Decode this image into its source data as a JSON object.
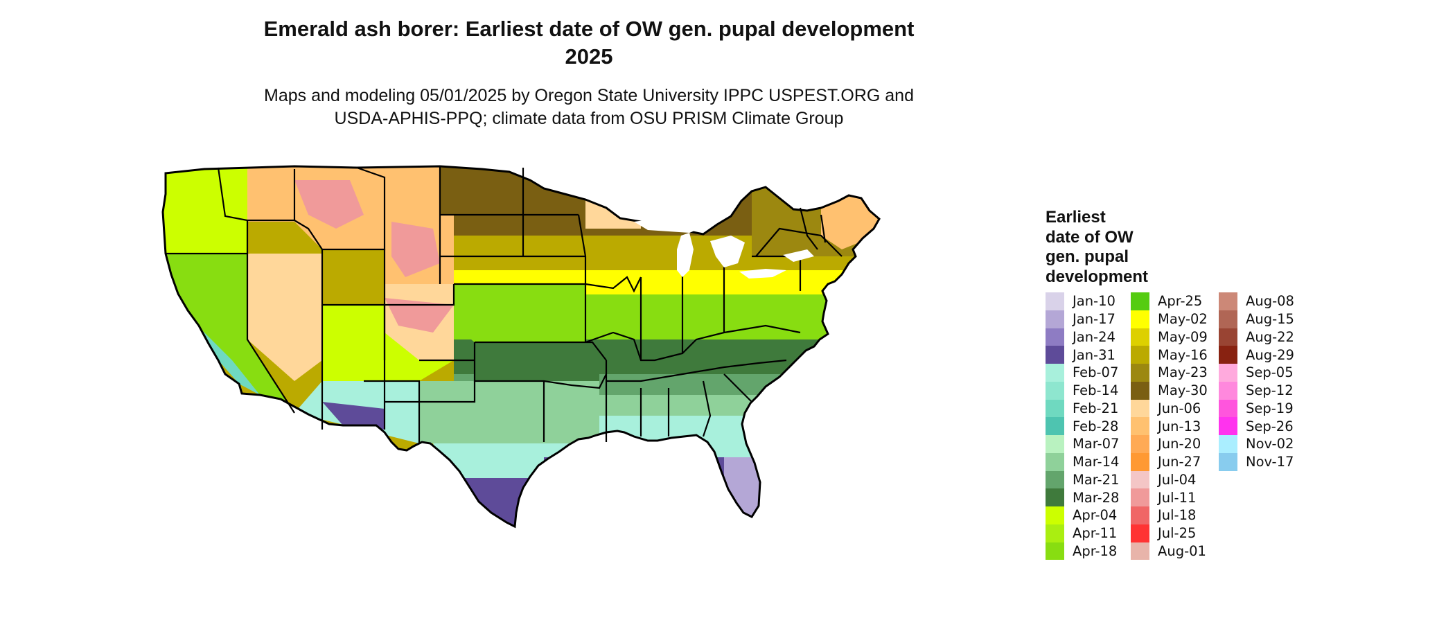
{
  "title_line1": "Emerald ash borer: Earliest date of OW gen. pupal development",
  "title_line2": "2025",
  "subtitle_line1": "Maps and modeling 05/01/2025 by Oregon State University IPPC USPEST.ORG and",
  "subtitle_line2": "USDA-APHIS-PPQ; climate data from OSU PRISM Climate Group",
  "legend": {
    "title_lines": [
      "Earliest",
      "date of OW",
      "gen. pupal",
      "development"
    ],
    "columns": [
      [
        {
          "label": "Jan-10",
          "color": "#d9d2e9"
        },
        {
          "label": "Jan-17",
          "color": "#b4a7d6"
        },
        {
          "label": "Jan-24",
          "color": "#8e7cc3"
        },
        {
          "label": "Jan-31",
          "color": "#5e4b99"
        },
        {
          "label": "Feb-07",
          "color": "#a8f0dc"
        },
        {
          "label": "Feb-14",
          "color": "#8ee6cf"
        },
        {
          "label": "Feb-21",
          "color": "#6fd9c0"
        },
        {
          "label": "Feb-28",
          "color": "#4ec4b0"
        },
        {
          "label": "Mar-07",
          "color": "#b9f2c0"
        },
        {
          "label": "Mar-14",
          "color": "#8fd19a"
        },
        {
          "label": "Mar-21",
          "color": "#63a56c"
        },
        {
          "label": "Mar-28",
          "color": "#3f7a3c"
        },
        {
          "label": "Apr-04",
          "color": "#ccff00"
        },
        {
          "label": "Apr-11",
          "color": "#aaee11"
        },
        {
          "label": "Apr-18",
          "color": "#88dd11"
        }
      ],
      [
        {
          "label": "Apr-25",
          "color": "#55cc11"
        },
        {
          "label": "May-02",
          "color": "#ffff00"
        },
        {
          "label": "May-09",
          "color": "#ddd000"
        },
        {
          "label": "May-16",
          "color": "#bbaa00"
        },
        {
          "label": "May-23",
          "color": "#9c8810"
        },
        {
          "label": "May-30",
          "color": "#7a5f12"
        },
        {
          "label": "Jun-06",
          "color": "#ffd79a"
        },
        {
          "label": "Jun-13",
          "color": "#ffc170"
        },
        {
          "label": "Jun-20",
          "color": "#ffaa55"
        },
        {
          "label": "Jun-27",
          "color": "#ff9933"
        },
        {
          "label": "Jul-04",
          "color": "#f4c6c6"
        },
        {
          "label": "Jul-11",
          "color": "#f09a9a"
        },
        {
          "label": "Jul-18",
          "color": "#f06666"
        },
        {
          "label": "Jul-25",
          "color": "#ff3333"
        },
        {
          "label": "Aug-01",
          "color": "#e8b4aa"
        }
      ],
      [
        {
          "label": "Aug-08",
          "color": "#cc8877"
        },
        {
          "label": "Aug-15",
          "color": "#b06655"
        },
        {
          "label": "Aug-22",
          "color": "#994433"
        },
        {
          "label": "Aug-29",
          "color": "#882211"
        },
        {
          "label": "Sep-05",
          "color": "#ffaadd"
        },
        {
          "label": "Sep-12",
          "color": "#ff88dd"
        },
        {
          "label": "Sep-19",
          "color": "#ff55dd"
        },
        {
          "label": "Sep-26",
          "color": "#ff33ee"
        },
        {
          "label": "Nov-02",
          "color": "#aaeeff"
        },
        {
          "label": "Nov-17",
          "color": "#88ccee"
        }
      ]
    ]
  },
  "map_colors": {
    "northwest_mix": "#ffc170",
    "mountain_pink": "#f09a9a",
    "pacific_green": "#88dd11",
    "california_coast": "#6fd9c0",
    "great_basin": "#ffd79a",
    "desert_yellow": "#ccff00",
    "plains_north": "#7a5f12",
    "plains_mid": "#bbaa00",
    "midwest_yellow": "#ffff00",
    "midwest_green": "#88dd11",
    "tennessee_band": "#3f7a3c",
    "south_band": "#63a56c",
    "southeast_band": "#8fd19a",
    "gulf_band": "#a8f0dc",
    "south_texas": "#5e4b99",
    "florida_tip": "#b4a7d6",
    "northeast_brown": "#9c8810",
    "maine_orange": "#ffc170",
    "lakes": "#ffffff"
  }
}
